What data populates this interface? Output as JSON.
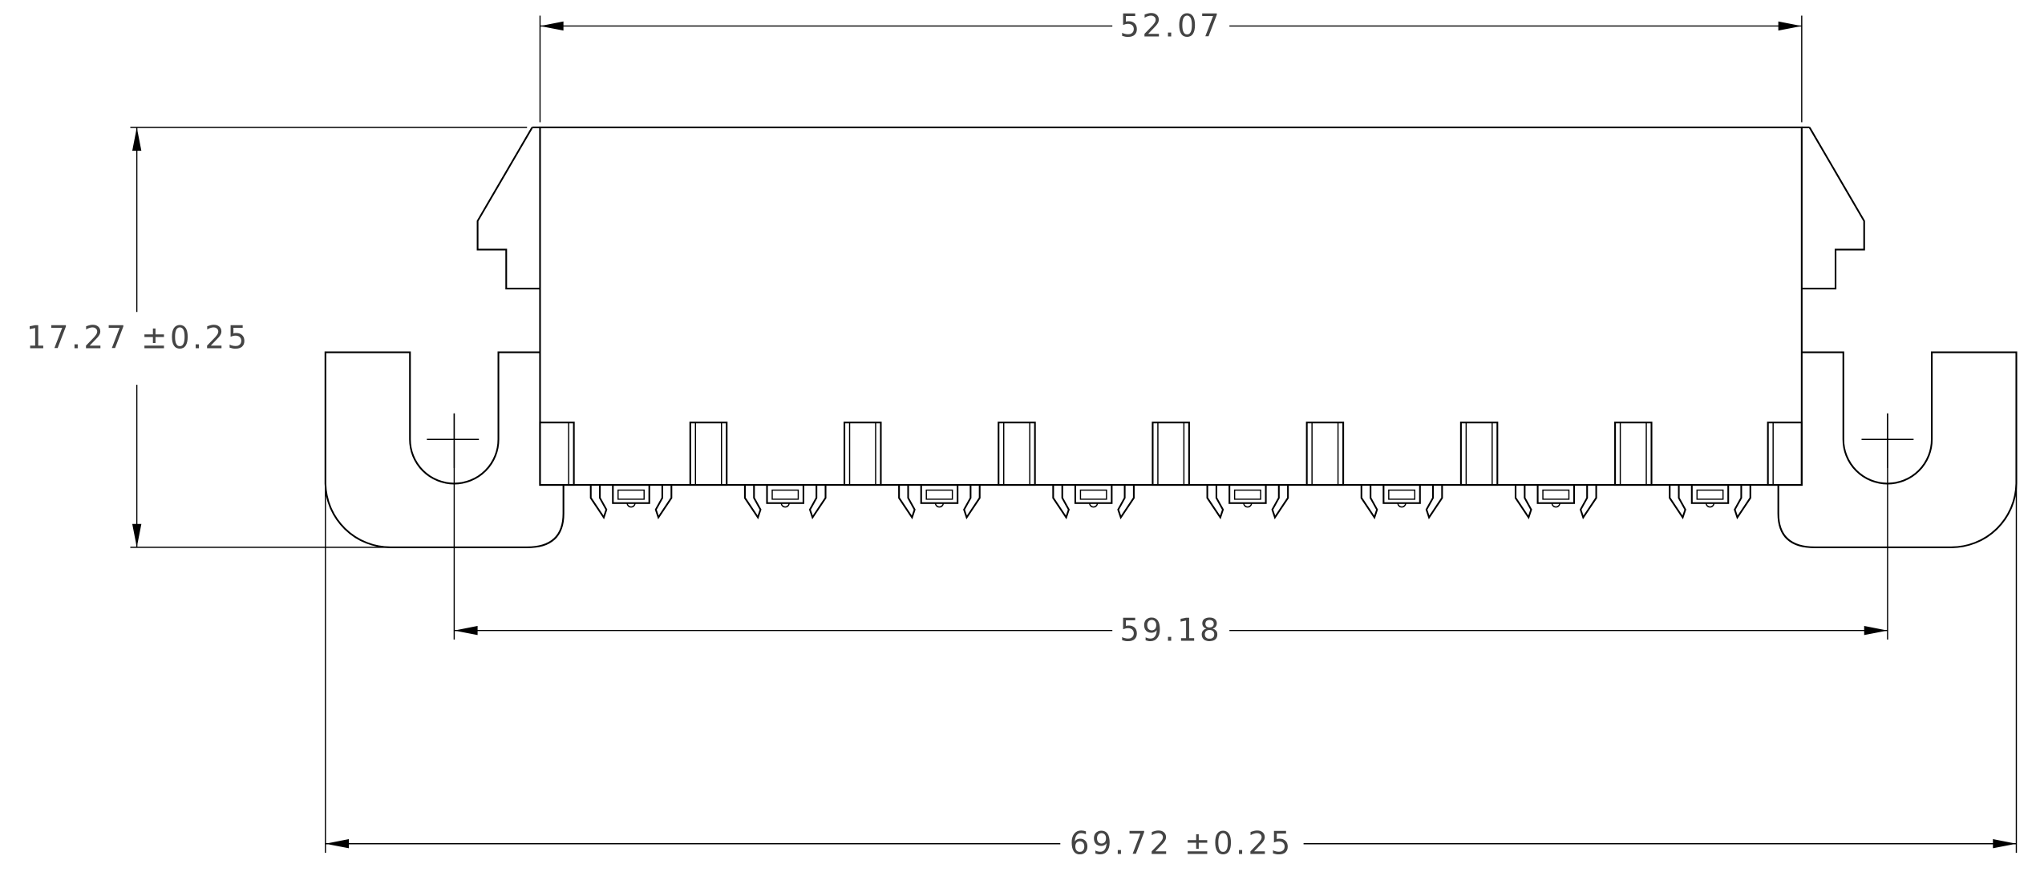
{
  "dimensions": {
    "top_width": "52.07",
    "height": "17.27",
    "height_tolerance": "±0.25",
    "hole_pitch": "59.18",
    "overall_width": "69.72",
    "overall_tolerance": "±0.25"
  },
  "contacts_count": 8,
  "colors": {
    "line": "#000000",
    "text": "#444444",
    "background": "#ffffff"
  }
}
